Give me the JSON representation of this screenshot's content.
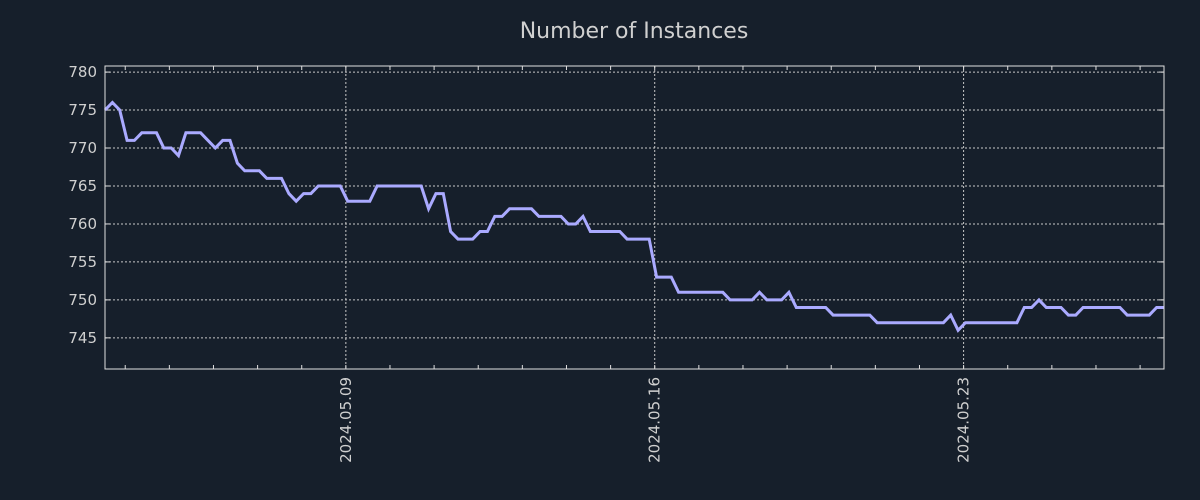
{
  "chart_data": {
    "type": "line",
    "title": "Number of Instances",
    "xlabel": "",
    "ylabel": "",
    "x_start": "2024-05-03 13:00",
    "interval_hours": 4,
    "xlim_hours": [
      0,
      576
    ],
    "ylim": [
      740.9,
      780.8
    ],
    "yticks": [
      745,
      750,
      755,
      760,
      765,
      770,
      775,
      780
    ],
    "xticks": [
      {
        "label": "2024.05.09",
        "hours": 131
      },
      {
        "label": "2024.05.16",
        "hours": 299
      },
      {
        "label": "2024.05.23",
        "hours": 467
      }
    ],
    "minor_xtick_first_hours": 11,
    "minor_xtick_step_hours": 24,
    "grid": true,
    "colors": {
      "background": "#161f2b",
      "line": "#aaaaff",
      "grid": "#c8c8c8",
      "text": "#d0d0d0"
    },
    "series": [
      {
        "name": "Number of Instances",
        "values": [
          775,
          776,
          775,
          771,
          771,
          772,
          772,
          772,
          770,
          770,
          769,
          772,
          772,
          772,
          771,
          770,
          771,
          771,
          768,
          767,
          767,
          767,
          766,
          766,
          766,
          764,
          763,
          764,
          764,
          765,
          765,
          765,
          765,
          763,
          763,
          763,
          763,
          765,
          765,
          765,
          765,
          765,
          765,
          765,
          762,
          764,
          764,
          759,
          758,
          758,
          758,
          759,
          759,
          761,
          761,
          762,
          762,
          762,
          762,
          761,
          761,
          761,
          761,
          760,
          760,
          761,
          759,
          759,
          759,
          759,
          759,
          758,
          758,
          758,
          758,
          753,
          753,
          753,
          751,
          751,
          751,
          751,
          751,
          751,
          751,
          750,
          750,
          750,
          750,
          751,
          750,
          750,
          750,
          751,
          749,
          749,
          749,
          749,
          749,
          748,
          748,
          748,
          748,
          748,
          748,
          747,
          747,
          747,
          747,
          747,
          747,
          747,
          747,
          747,
          747,
          748,
          746,
          747,
          747,
          747,
          747,
          747,
          747,
          747,
          747,
          749,
          749,
          750,
          749,
          749,
          749,
          748,
          748,
          749,
          749,
          749,
          749,
          749,
          749,
          748,
          748,
          748,
          748,
          749,
          749
        ]
      }
    ]
  }
}
